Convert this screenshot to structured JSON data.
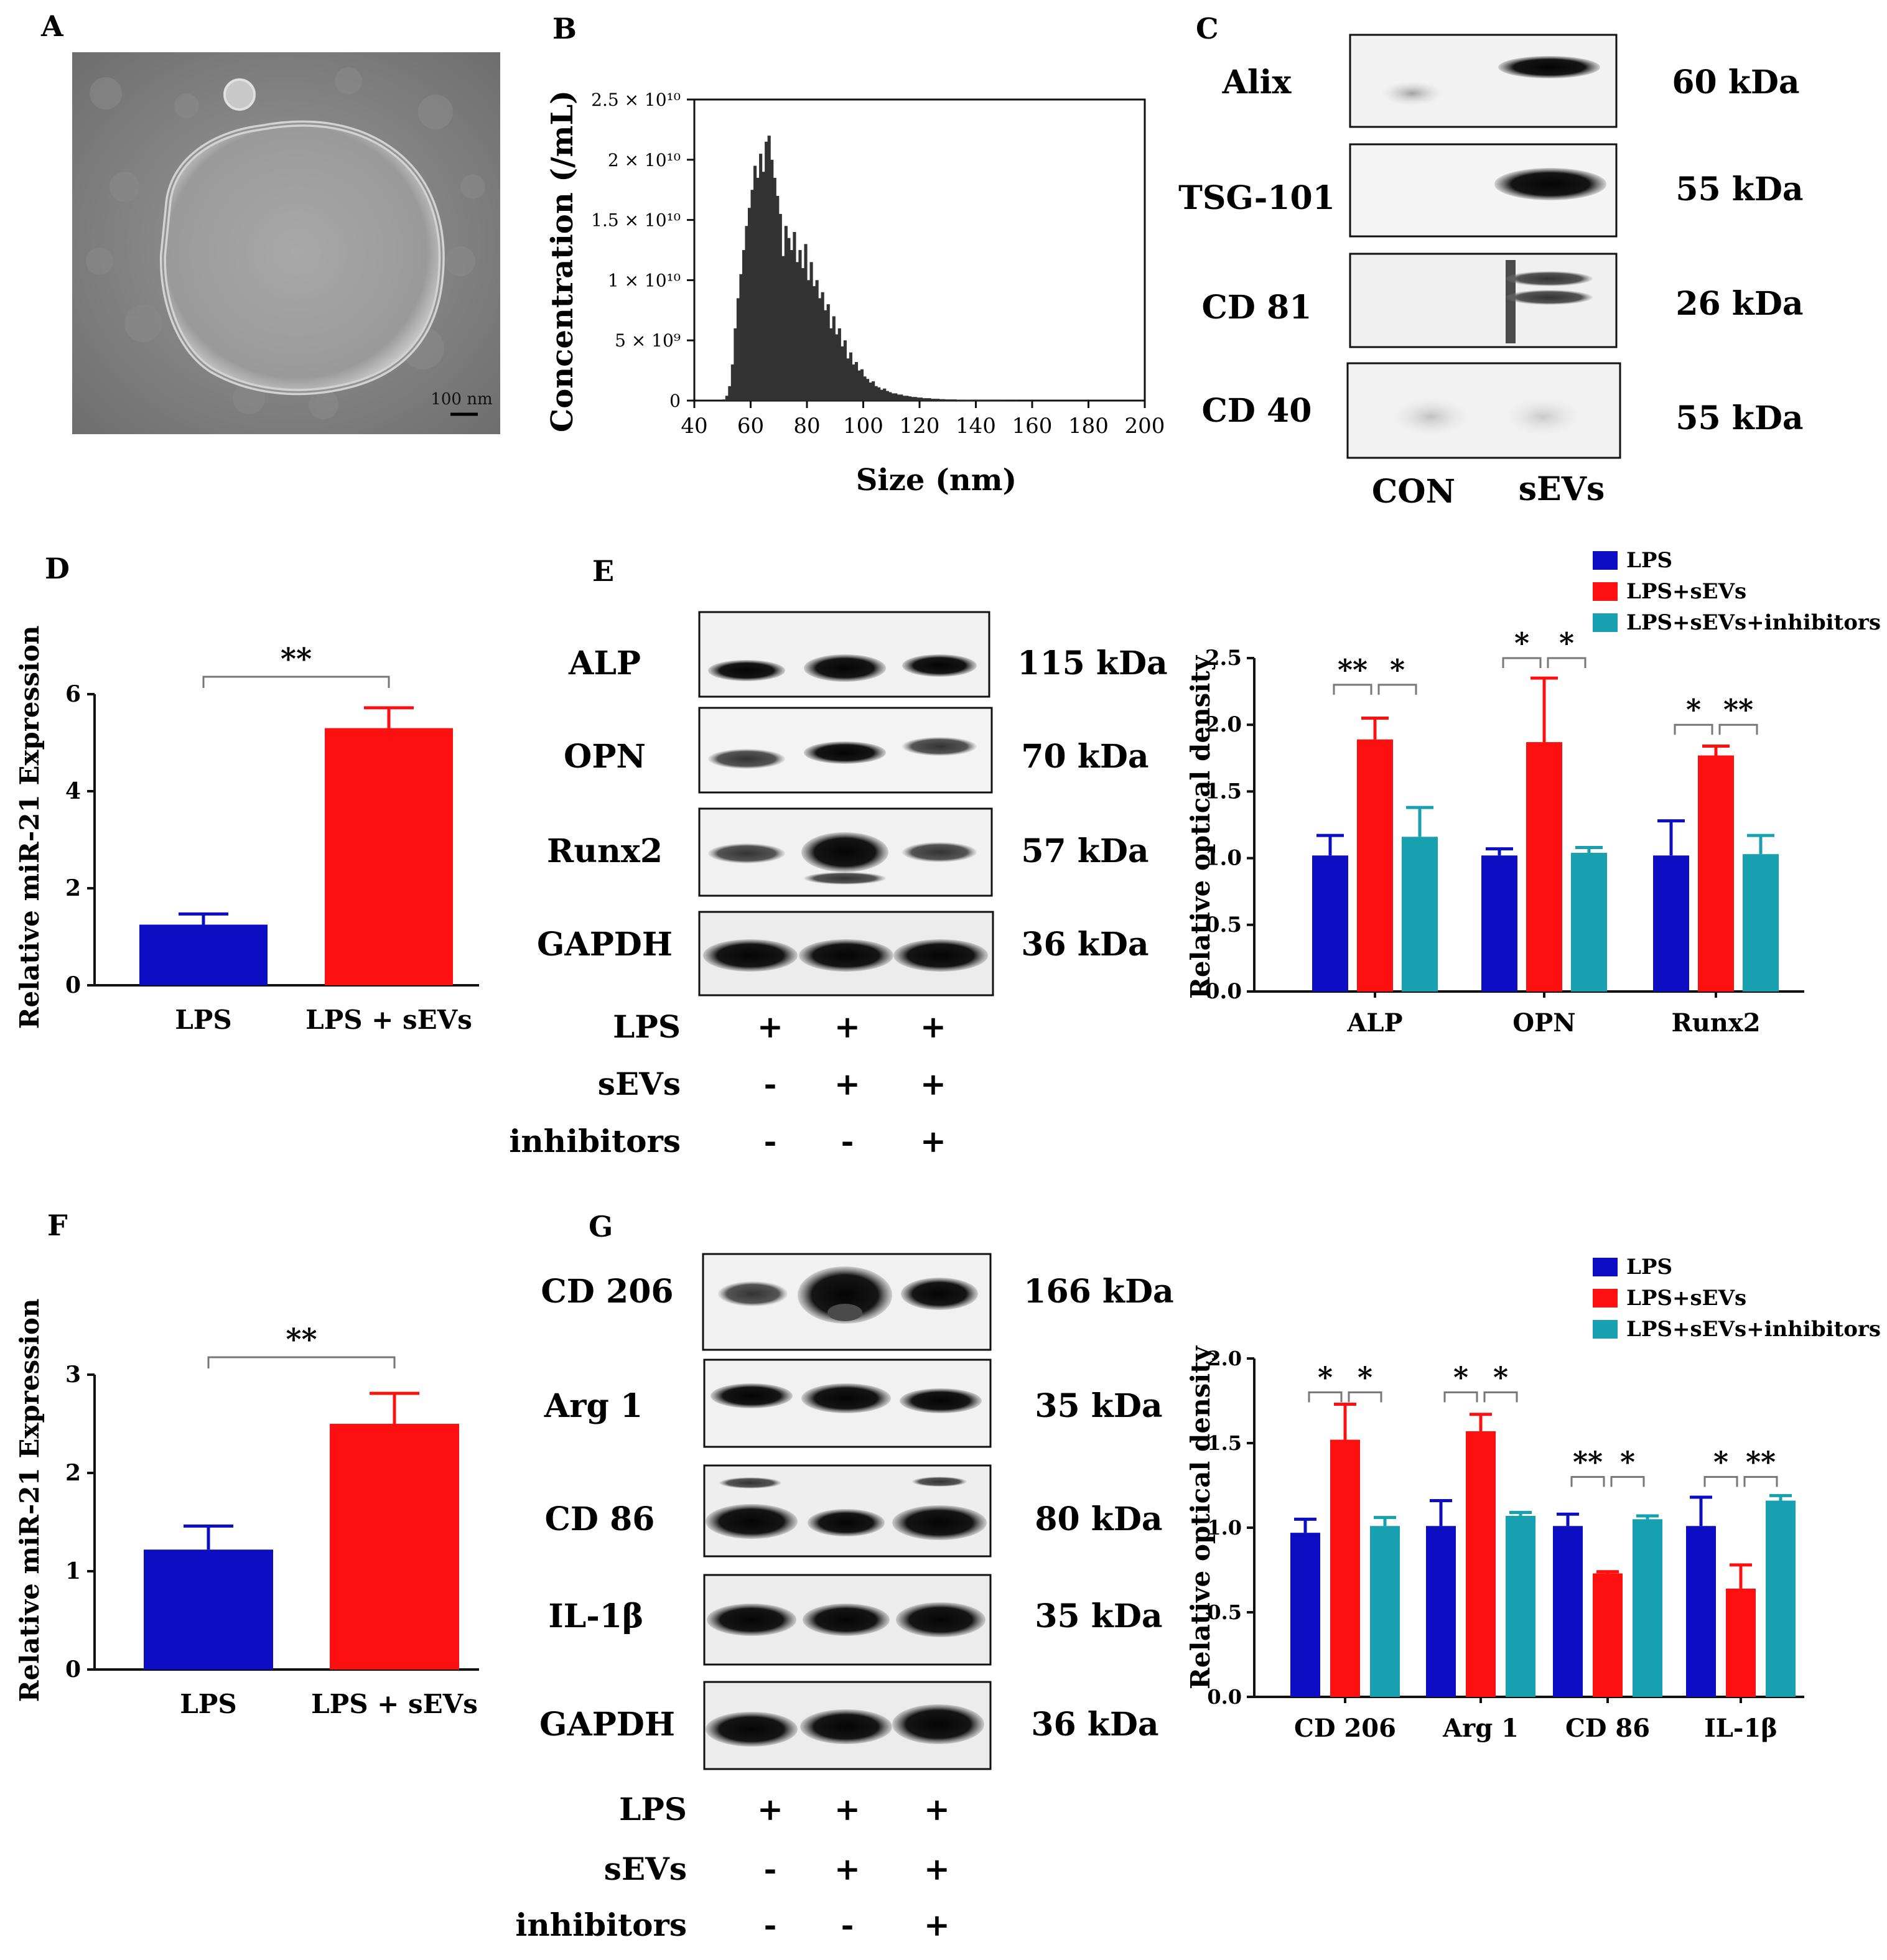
{
  "panels": {
    "A": {
      "letter": "A",
      "scale_bar": "100 nm"
    },
    "B": {
      "letter": "B"
    },
    "C": {
      "letter": "C",
      "blots": [
        {
          "protein": "Alix",
          "mw": "60 kDa"
        },
        {
          "protein": "TSG-101",
          "mw": "55 kDa"
        },
        {
          "protein": "CD 81",
          "mw": "26 kDa"
        },
        {
          "protein": "CD 40",
          "mw": "55 kDa"
        }
      ],
      "lanes": [
        "CON",
        "sEVs"
      ]
    },
    "D": {
      "letter": "D"
    },
    "E": {
      "letter": "E",
      "blots": [
        {
          "protein": "ALP",
          "mw": "115 kDa"
        },
        {
          "protein": "OPN",
          "mw": "70 kDa"
        },
        {
          "protein": "Runx2",
          "mw": "57 kDa"
        },
        {
          "protein": "GAPDH",
          "mw": "36 kDa"
        }
      ],
      "treatments": [
        {
          "name": "LPS",
          "marks": [
            "+",
            "+",
            "+"
          ]
        },
        {
          "name": "sEVs",
          "marks": [
            "-",
            "+",
            "+"
          ]
        },
        {
          "name": "inhibitors",
          "marks": [
            "-",
            "-",
            "+"
          ]
        }
      ]
    },
    "F": {
      "letter": "F"
    },
    "G": {
      "letter": "G",
      "blots": [
        {
          "protein": "CD 206",
          "mw": "166 kDa"
        },
        {
          "protein": "Arg 1",
          "mw": "35 kDa"
        },
        {
          "protein": "CD 86",
          "mw": "80 kDa"
        },
        {
          "protein": "IL-1β",
          "mw": "35 kDa"
        },
        {
          "protein": "GAPDH",
          "mw": "36 kDa"
        }
      ],
      "treatments": [
        {
          "name": "LPS",
          "marks": [
            "+",
            "+",
            "+"
          ]
        },
        {
          "name": "sEVs",
          "marks": [
            "-",
            "+",
            "+"
          ]
        },
        {
          "name": "inhibitors",
          "marks": [
            "-",
            "-",
            "+"
          ]
        }
      ]
    }
  },
  "colors": {
    "lps": "#0d0dc4",
    "lps_sevs": "#ff1010",
    "inhibitors": "#17a0b0",
    "hist": "#333333",
    "axis": "#111111"
  },
  "chart_data": [
    {
      "id": "B",
      "type": "bar",
      "subtype": "histogram",
      "xlabel": "Size (nm)",
      "ylabel": "Concentration (/mL)",
      "xlim": [
        40,
        200
      ],
      "ylim": [
        0,
        25000000000.0
      ],
      "xticks": [
        40,
        60,
        80,
        100,
        120,
        140,
        160,
        180,
        200
      ],
      "yticks": [
        {
          "v": 0,
          "t": "0"
        },
        {
          "v": 5000000000.0,
          "t": "5 × 10⁹"
        },
        {
          "v": 10000000000.0,
          "t": "1 × 10¹⁰"
        },
        {
          "v": 15000000000.0,
          "t": "1.5 × 10¹⁰"
        },
        {
          "v": 20000000000.0,
          "t": "2 × 10¹⁰"
        },
        {
          "v": 25000000000.0,
          "t": "2.5 × 10¹⁰"
        }
      ],
      "bin_width": 1,
      "x": [
        50,
        51,
        52,
        53,
        54,
        55,
        56,
        57,
        58,
        59,
        60,
        61,
        62,
        63,
        64,
        65,
        66,
        67,
        68,
        69,
        70,
        71,
        72,
        73,
        74,
        75,
        76,
        77,
        78,
        79,
        80,
        81,
        82,
        83,
        84,
        85,
        86,
        87,
        88,
        89,
        90,
        91,
        92,
        93,
        94,
        95,
        96,
        97,
        98,
        99,
        100,
        101,
        102,
        103,
        104,
        105,
        106,
        107,
        108,
        109,
        110,
        111,
        112,
        113,
        114,
        115,
        116,
        117,
        118,
        119,
        120,
        121,
        122,
        123,
        124,
        125,
        126,
        127,
        128,
        129,
        130,
        131,
        132,
        133,
        134,
        135,
        136,
        137,
        138,
        139,
        140,
        141,
        142,
        143,
        144,
        145,
        146,
        147,
        148,
        149,
        150,
        151,
        152,
        153,
        154,
        155,
        156,
        157,
        158,
        159,
        160
      ],
      "values": [
        100000000.0,
        400000000.0,
        1200000000.0,
        3000000000.0,
        6000000000.0,
        8500000000.0,
        10500000000.0,
        12500000000.0,
        14500000000.0,
        16000000000.0,
        17500000000.0,
        19500000000.0,
        18500000000.0,
        20500000000.0,
        19000000000.0,
        21500000000.0,
        22000000000.0,
        20000000000.0,
        18500000000.0,
        17000000000.0,
        15500000000.0,
        12000000000.0,
        14500000000.0,
        13500000000.0,
        12500000000.0,
        14000000000.0,
        11500000000.0,
        12500000000.0,
        11000000000.0,
        13000000000.0,
        10000000000.0,
        11500000000.0,
        9500000000.0,
        10000000000.0,
        8500000000.0,
        9000000000.0,
        7500000000.0,
        8000000000.0,
        6000000000.0,
        7000000000.0,
        5500000000.0,
        6000000000.0,
        4500000000.0,
        5000000000.0,
        3500000000.0,
        4000000000.0,
        3000000000.0,
        3200000000.0,
        2500000000.0,
        2600000000.0,
        2000000000.0,
        1800000000.0,
        1500000000.0,
        1600000000.0,
        1200000000.0,
        1100000000.0,
        900000000.0,
        1000000000.0,
        800000000.0,
        700000000.0,
        600000000.0,
        600000000.0,
        500000000.0,
        500000000.0,
        400000000.0,
        400000000.0,
        350000000.0,
        300000000.0,
        300000000.0,
        250000000.0,
        250000000.0,
        200000000.0,
        200000000.0,
        200000000.0,
        150000000.0,
        150000000.0,
        150000000.0,
        120000000.0,
        120000000.0,
        100000000.0,
        100000000.0,
        100000000.0,
        100000000.0,
        80000000.0,
        80000000.0,
        80000000.0,
        70000000.0,
        60000000.0,
        60000000.0,
        50000000.0,
        50000000.0,
        50000000.0,
        40000000.0,
        40000000.0,
        40000000.0,
        30000000.0,
        30000000.0,
        30000000.0,
        30000000.0,
        20000000.0,
        20000000.0,
        20000000.0,
        20000000.0,
        20000000.0,
        20000000.0,
        10000000.0,
        10000000.0,
        10000000.0,
        10000000.0,
        10000000.0,
        10000000.0
      ]
    },
    {
      "id": "D",
      "type": "bar",
      "ylabel": "Relative miR-21 Expression",
      "categories": [
        "LPS",
        "LPS + sEVs"
      ],
      "values": [
        1.25,
        5.3
      ],
      "errors": [
        0.22,
        0.42
      ],
      "ylim": [
        0,
        6
      ],
      "yticks": [
        0,
        2,
        4,
        6
      ],
      "significance": "**"
    },
    {
      "id": "E",
      "type": "bar",
      "ylabel": "Relative optical density",
      "categories": [
        "ALP",
        "OPN",
        "Runx2"
      ],
      "series": [
        {
          "name": "LPS",
          "values": [
            1.02,
            1.02,
            1.02
          ],
          "errors": [
            0.15,
            0.05,
            0.26
          ]
        },
        {
          "name": "LPS+sEVs",
          "values": [
            1.89,
            1.87,
            1.77
          ],
          "errors": [
            0.16,
            0.48,
            0.07
          ]
        },
        {
          "name": "LPS+sEVs+inhibitors",
          "values": [
            1.16,
            1.04,
            1.03
          ],
          "errors": [
            0.22,
            0.04,
            0.14
          ]
        }
      ],
      "ylim": [
        0,
        2.5
      ],
      "yticks": [
        "0.0",
        "0.5",
        "1.0",
        "1.5",
        "2.0",
        "2.5"
      ],
      "significance": [
        {
          "group": 0,
          "from": 0,
          "to": 1,
          "label": "**",
          "y": 2.3
        },
        {
          "group": 0,
          "from": 1,
          "to": 2,
          "label": "*",
          "y": 2.3
        },
        {
          "group": 1,
          "from": 0,
          "to": 1,
          "label": "*",
          "y": 2.5
        },
        {
          "group": 1,
          "from": 1,
          "to": 2,
          "label": "*",
          "y": 2.5
        },
        {
          "group": 2,
          "from": 0,
          "to": 1,
          "label": "*",
          "y": 2.0
        },
        {
          "group": 2,
          "from": 1,
          "to": 2,
          "label": "**",
          "y": 2.0
        }
      ]
    },
    {
      "id": "F",
      "type": "bar",
      "ylabel": "Relative miR-21 Expression",
      "categories": [
        "LPS",
        "LPS + sEVs"
      ],
      "values": [
        1.22,
        2.5
      ],
      "errors": [
        0.24,
        0.31
      ],
      "ylim": [
        0,
        3
      ],
      "yticks": [
        0,
        1,
        2,
        3
      ],
      "significance": "**"
    },
    {
      "id": "G",
      "type": "bar",
      "ylabel": "Relative optical density",
      "categories": [
        "CD 206",
        "Arg 1",
        "CD 86",
        "IL-1β"
      ],
      "series": [
        {
          "name": "LPS",
          "values": [
            0.97,
            1.01,
            1.01,
            1.01
          ],
          "errors": [
            0.08,
            0.15,
            0.07,
            0.17
          ]
        },
        {
          "name": "LPS+sEVs",
          "values": [
            1.52,
            1.57,
            0.73,
            0.64
          ],
          "errors": [
            0.21,
            0.1,
            0.01,
            0.14
          ]
        },
        {
          "name": "LPS+sEVs+inhibitors",
          "values": [
            1.01,
            1.07,
            1.05,
            1.16
          ],
          "errors": [
            0.05,
            0.02,
            0.02,
            0.03
          ]
        }
      ],
      "ylim": [
        0,
        2.0
      ],
      "yticks": [
        "0.0",
        "0.5",
        "1.0",
        "1.5",
        "2.0"
      ],
      "significance": [
        {
          "group": 0,
          "from": 0,
          "to": 1,
          "label": "*",
          "y": 1.8
        },
        {
          "group": 0,
          "from": 1,
          "to": 2,
          "label": "*",
          "y": 1.8
        },
        {
          "group": 1,
          "from": 0,
          "to": 1,
          "label": "*",
          "y": 1.8
        },
        {
          "group": 1,
          "from": 1,
          "to": 2,
          "label": "*",
          "y": 1.8
        },
        {
          "group": 2,
          "from": 0,
          "to": 1,
          "label": "**",
          "y": 1.3
        },
        {
          "group": 2,
          "from": 1,
          "to": 2,
          "label": "*",
          "y": 1.3
        },
        {
          "group": 3,
          "from": 0,
          "to": 1,
          "label": "*",
          "y": 1.3
        },
        {
          "group": 3,
          "from": 1,
          "to": 2,
          "label": "**",
          "y": 1.3
        }
      ]
    }
  ]
}
